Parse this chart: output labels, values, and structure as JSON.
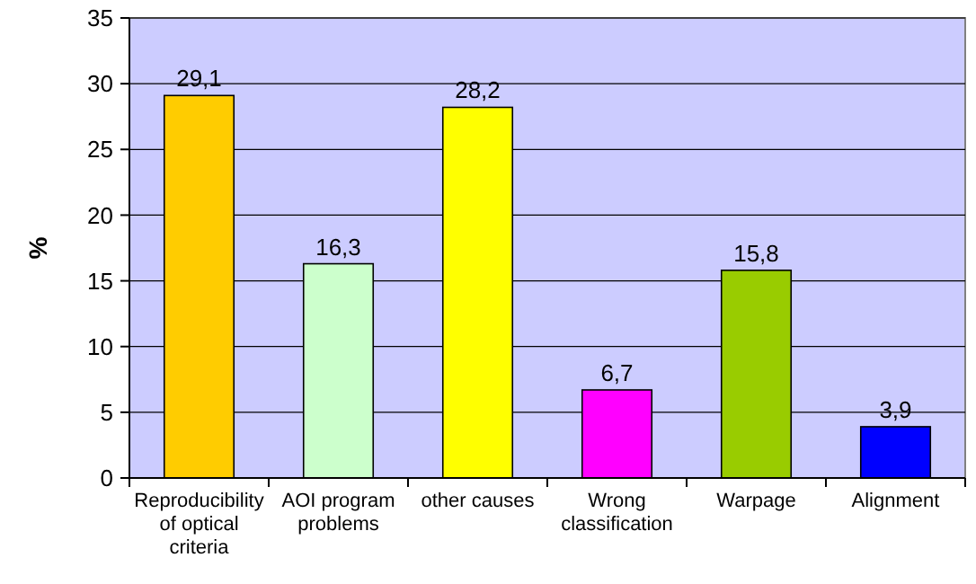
{
  "chart_data": {
    "type": "bar",
    "ylabel": "%",
    "categories": [
      "Reproducibility of optical criteria",
      "AOI program problems",
      "other causes",
      "Wrong classification",
      "Warpage",
      "Alignment"
    ],
    "values": [
      29.1,
      16.3,
      28.2,
      6.7,
      15.8,
      3.9
    ],
    "value_labels": [
      "29,1",
      "16,3",
      "28,2",
      "6,7",
      "15,8",
      "3,9"
    ],
    "colors": [
      "#ffcc00",
      "#ccffcc",
      "#ffff00",
      "#ff00ff",
      "#99cc00",
      "#0000ff"
    ],
    "ylim": [
      0,
      35
    ],
    "yticks": [
      0,
      5,
      10,
      15,
      20,
      25,
      30,
      35
    ],
    "grid": "y"
  }
}
